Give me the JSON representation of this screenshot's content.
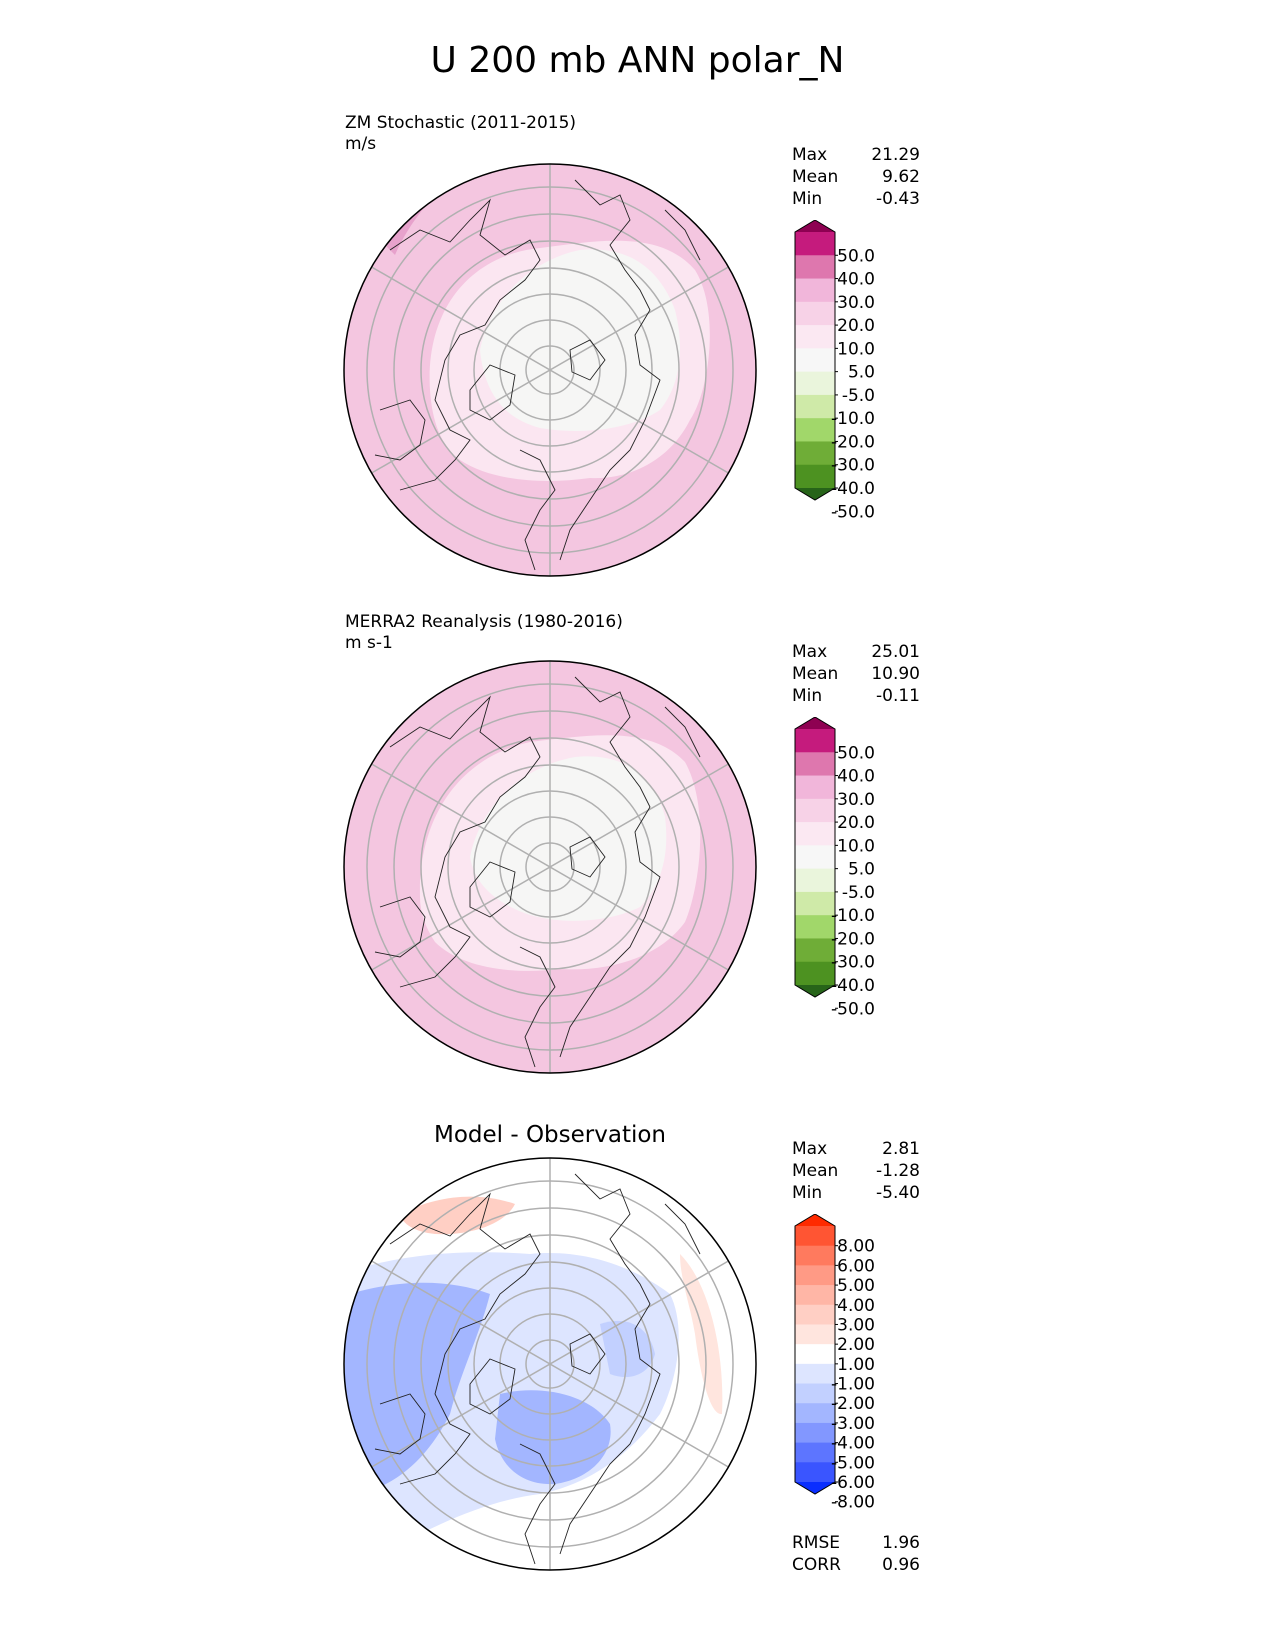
{
  "figure": {
    "title": "U 200 mb ANN polar_N"
  },
  "chart_data": [
    {
      "type": "heatmap",
      "projection": "north polar stereographic",
      "label": "ZM Stochastic (2011-2015)",
      "units": "m/s",
      "stats": [
        {
          "name": "Max",
          "value": "21.29"
        },
        {
          "name": "Mean",
          "value": "9.62"
        },
        {
          "name": "Min",
          "value": "-0.43"
        }
      ],
      "colorbar": {
        "ticks": [
          "50.0",
          "40.0",
          "30.0",
          "20.0",
          "10.0",
          "5.0",
          "-5.0",
          "-10.0",
          "-20.0",
          "-30.0",
          "-40.0",
          "-50.0"
        ],
        "colors_top_to_bottom": [
          "#8e0152",
          "#c51b7d",
          "#de77ae",
          "#f1b6da",
          "#f7d2e7",
          "#fbe8f2",
          "#f7f7f7",
          "#eaf5dc",
          "#cfeaa8",
          "#a1d76a",
          "#6fad37",
          "#4d9221",
          "#276419"
        ],
        "extend": "both"
      },
      "regions_top_to_bottom": [
        "10.0 to 20.0",
        "5.0 to 10.0",
        "-5.0 to 5.0"
      ]
    },
    {
      "type": "heatmap",
      "projection": "north polar stereographic",
      "label": "MERRA2 Reanalysis (1980-2016)",
      "units": "m s-1",
      "stats": [
        {
          "name": "Max",
          "value": "25.01"
        },
        {
          "name": "Mean",
          "value": "10.90"
        },
        {
          "name": "Min",
          "value": "-0.11"
        }
      ],
      "colorbar": {
        "ticks": [
          "50.0",
          "40.0",
          "30.0",
          "20.0",
          "10.0",
          "5.0",
          "-5.0",
          "-10.0",
          "-20.0",
          "-30.0",
          "-40.0",
          "-50.0"
        ],
        "colors_top_to_bottom": [
          "#8e0152",
          "#c51b7d",
          "#de77ae",
          "#f1b6da",
          "#f7d2e7",
          "#fbe8f2",
          "#f7f7f7",
          "#eaf5dc",
          "#cfeaa8",
          "#a1d76a",
          "#6fad37",
          "#4d9221",
          "#276419"
        ],
        "extend": "both"
      },
      "regions_top_to_bottom": [
        "20.0 to 30.0",
        "10.0 to 20.0",
        "5.0 to 10.0",
        "-5.0 to 5.0"
      ]
    },
    {
      "type": "heatmap",
      "projection": "north polar stereographic",
      "title": "Model - Observation",
      "stats": [
        {
          "name": "Max",
          "value": "2.81"
        },
        {
          "name": "Mean",
          "value": "-1.28"
        },
        {
          "name": "Min",
          "value": "-5.40"
        }
      ],
      "colorbar": {
        "ticks": [
          "8.00",
          "6.00",
          "5.00",
          "4.00",
          "3.00",
          "2.00",
          "1.00",
          "-1.00",
          "-2.00",
          "-3.00",
          "-4.00",
          "-5.00",
          "-6.00",
          "-8.00"
        ],
        "colors_top_to_bottom": [
          "#ff2a00",
          "#ff5533",
          "#ff7a5e",
          "#ff9a85",
          "#ffb6a6",
          "#ffcfc4",
          "#ffe5de",
          "#ffffff",
          "#dde5ff",
          "#c2d0ff",
          "#a3b6ff",
          "#8297ff",
          "#5d75ff",
          "#3a55ff",
          "#0a2eff"
        ],
        "extend": "both"
      },
      "bottom_stats": [
        {
          "name": "RMSE",
          "value": "1.96"
        },
        {
          "name": "CORR",
          "value": "0.96"
        }
      ]
    }
  ]
}
